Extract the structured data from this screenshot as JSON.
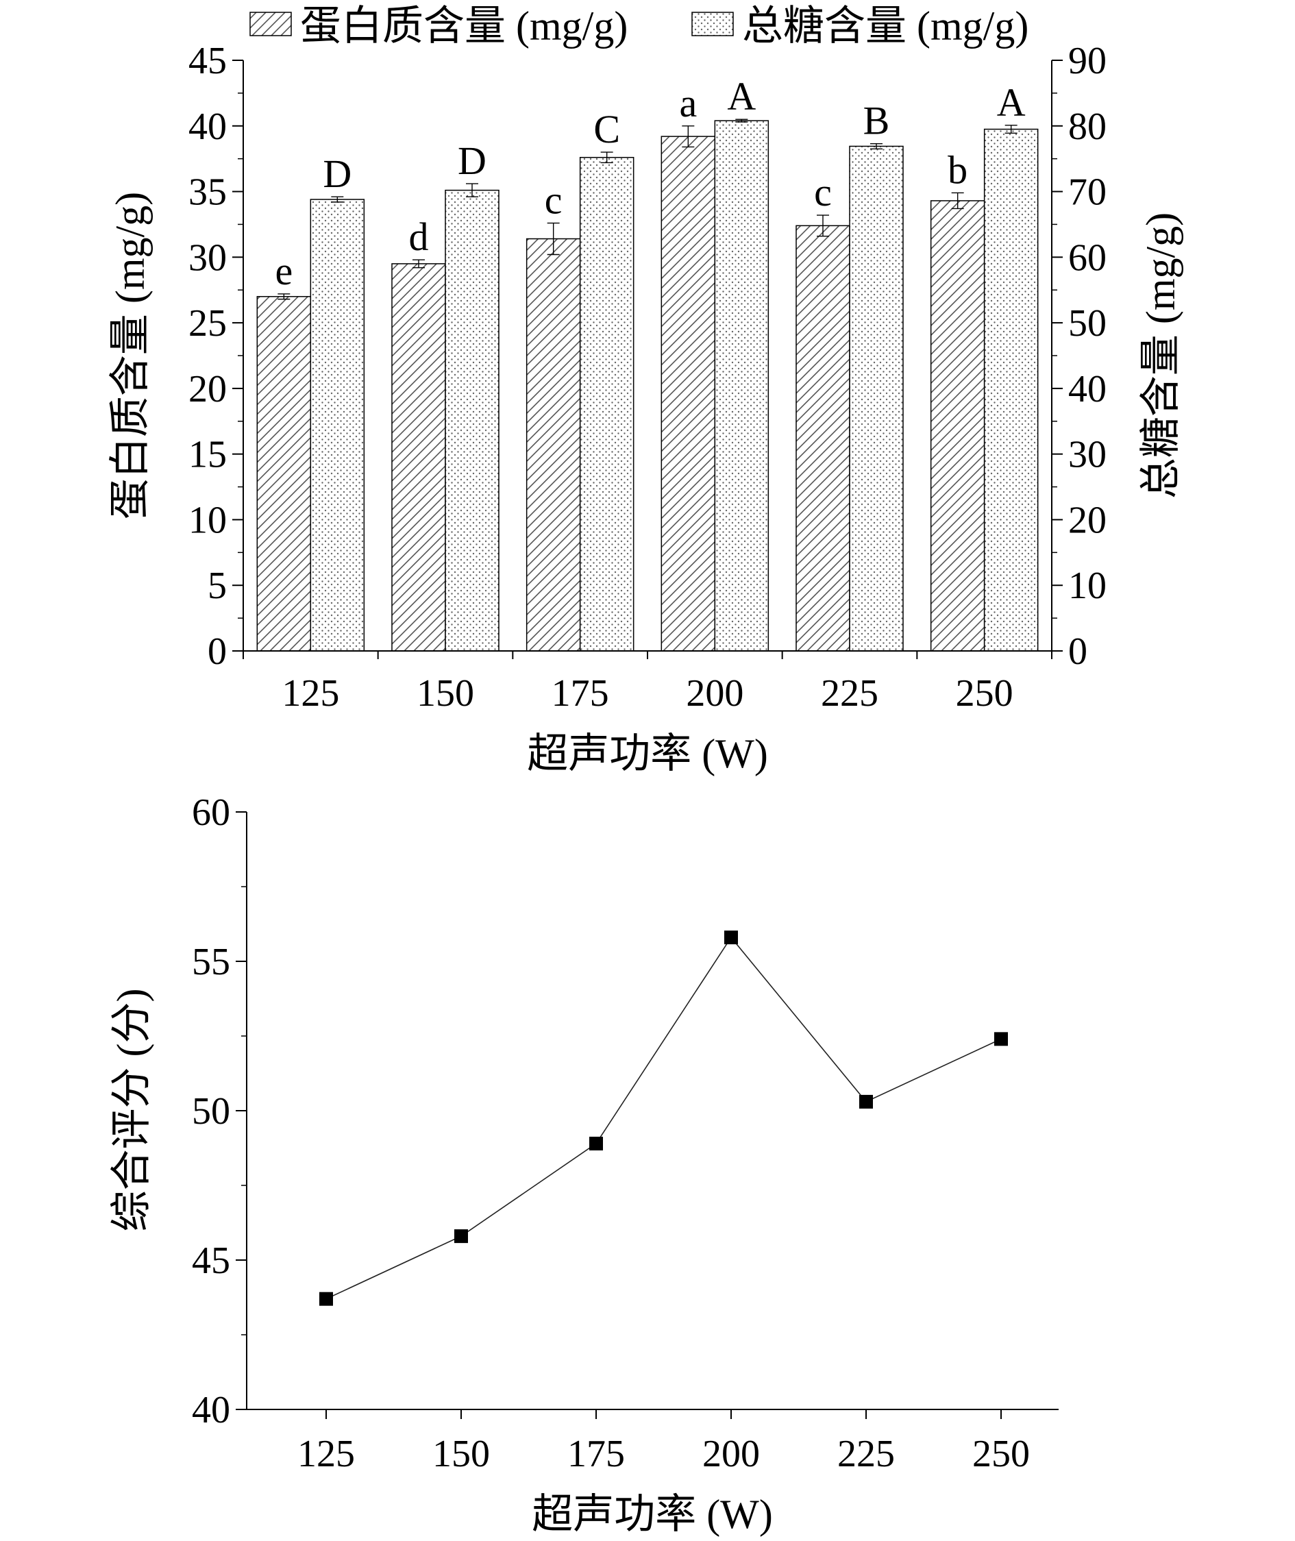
{
  "chart_data": [
    {
      "type": "bar",
      "xlabel": "超声功率 (W)",
      "ylabel": "蛋白质含量 (mg/g)",
      "y2label": "总糖含量 (mg/g)",
      "categories": [
        "125",
        "150",
        "175",
        "200",
        "225",
        "250"
      ],
      "ylim": [
        0,
        45
      ],
      "y2lim": [
        0,
        90
      ],
      "yticks": [
        "0",
        "5",
        "10",
        "15",
        "20",
        "25",
        "30",
        "35",
        "40",
        "45"
      ],
      "y2ticks": [
        "0",
        "10",
        "20",
        "30",
        "40",
        "50",
        "60",
        "70",
        "80",
        "90"
      ],
      "legend_position": "top",
      "series": [
        {
          "name": "蛋白质含量 (mg/g)",
          "axis": "left",
          "pattern": "hatched",
          "values": [
            27.0,
            29.5,
            31.4,
            39.2,
            32.4,
            34.3
          ],
          "errors": [
            0.2,
            0.3,
            1.2,
            0.8,
            0.8,
            0.6
          ],
          "labels": [
            "e",
            "d",
            "c",
            "a",
            "c",
            "b"
          ]
        },
        {
          "name": "总糖含量 (mg/g)",
          "axis": "right",
          "pattern": "dotted",
          "values": [
            68.8,
            70.2,
            75.2,
            80.8,
            76.9,
            79.5
          ],
          "errors": [
            0.4,
            1.0,
            0.8,
            0.2,
            0.4,
            0.6
          ],
          "labels": [
            "D",
            "D",
            "C",
            "A",
            "B",
            "A"
          ]
        }
      ]
    },
    {
      "type": "line",
      "xlabel": "超声功率 (W)",
      "ylabel": "综合评分 (分)",
      "categories": [
        "125",
        "150",
        "175",
        "200",
        "225",
        "250"
      ],
      "ylim": [
        40,
        60
      ],
      "yticks": [
        "40",
        "45",
        "50",
        "55",
        "60"
      ],
      "series": [
        {
          "values": [
            43.7,
            45.8,
            48.9,
            55.8,
            50.3,
            52.4
          ]
        }
      ]
    }
  ]
}
